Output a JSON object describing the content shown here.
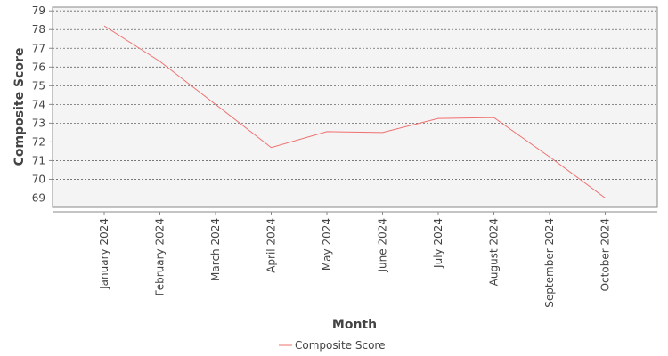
{
  "chart_data": {
    "type": "line",
    "title": "",
    "xlabel": "Month",
    "ylabel": "Composite Score",
    "categories": [
      "January 2024",
      "February 2024",
      "March 2024",
      "April 2024",
      "May 2024",
      "June 2024",
      "July 2024",
      "August 2024",
      "September 2024",
      "October 2024"
    ],
    "series": [
      {
        "name": "Composite Score",
        "color": "#f07070",
        "values": [
          78.2,
          76.3,
          74.0,
          71.7,
          72.55,
          72.5,
          73.25,
          73.3,
          71.2,
          69.0
        ]
      }
    ],
    "yticks": [
      69,
      70,
      71,
      72,
      73,
      74,
      75,
      76,
      77,
      78,
      79
    ],
    "ylim": [
      68.5,
      79.2
    ],
    "grid": true,
    "legend_position": "bottom-center"
  }
}
